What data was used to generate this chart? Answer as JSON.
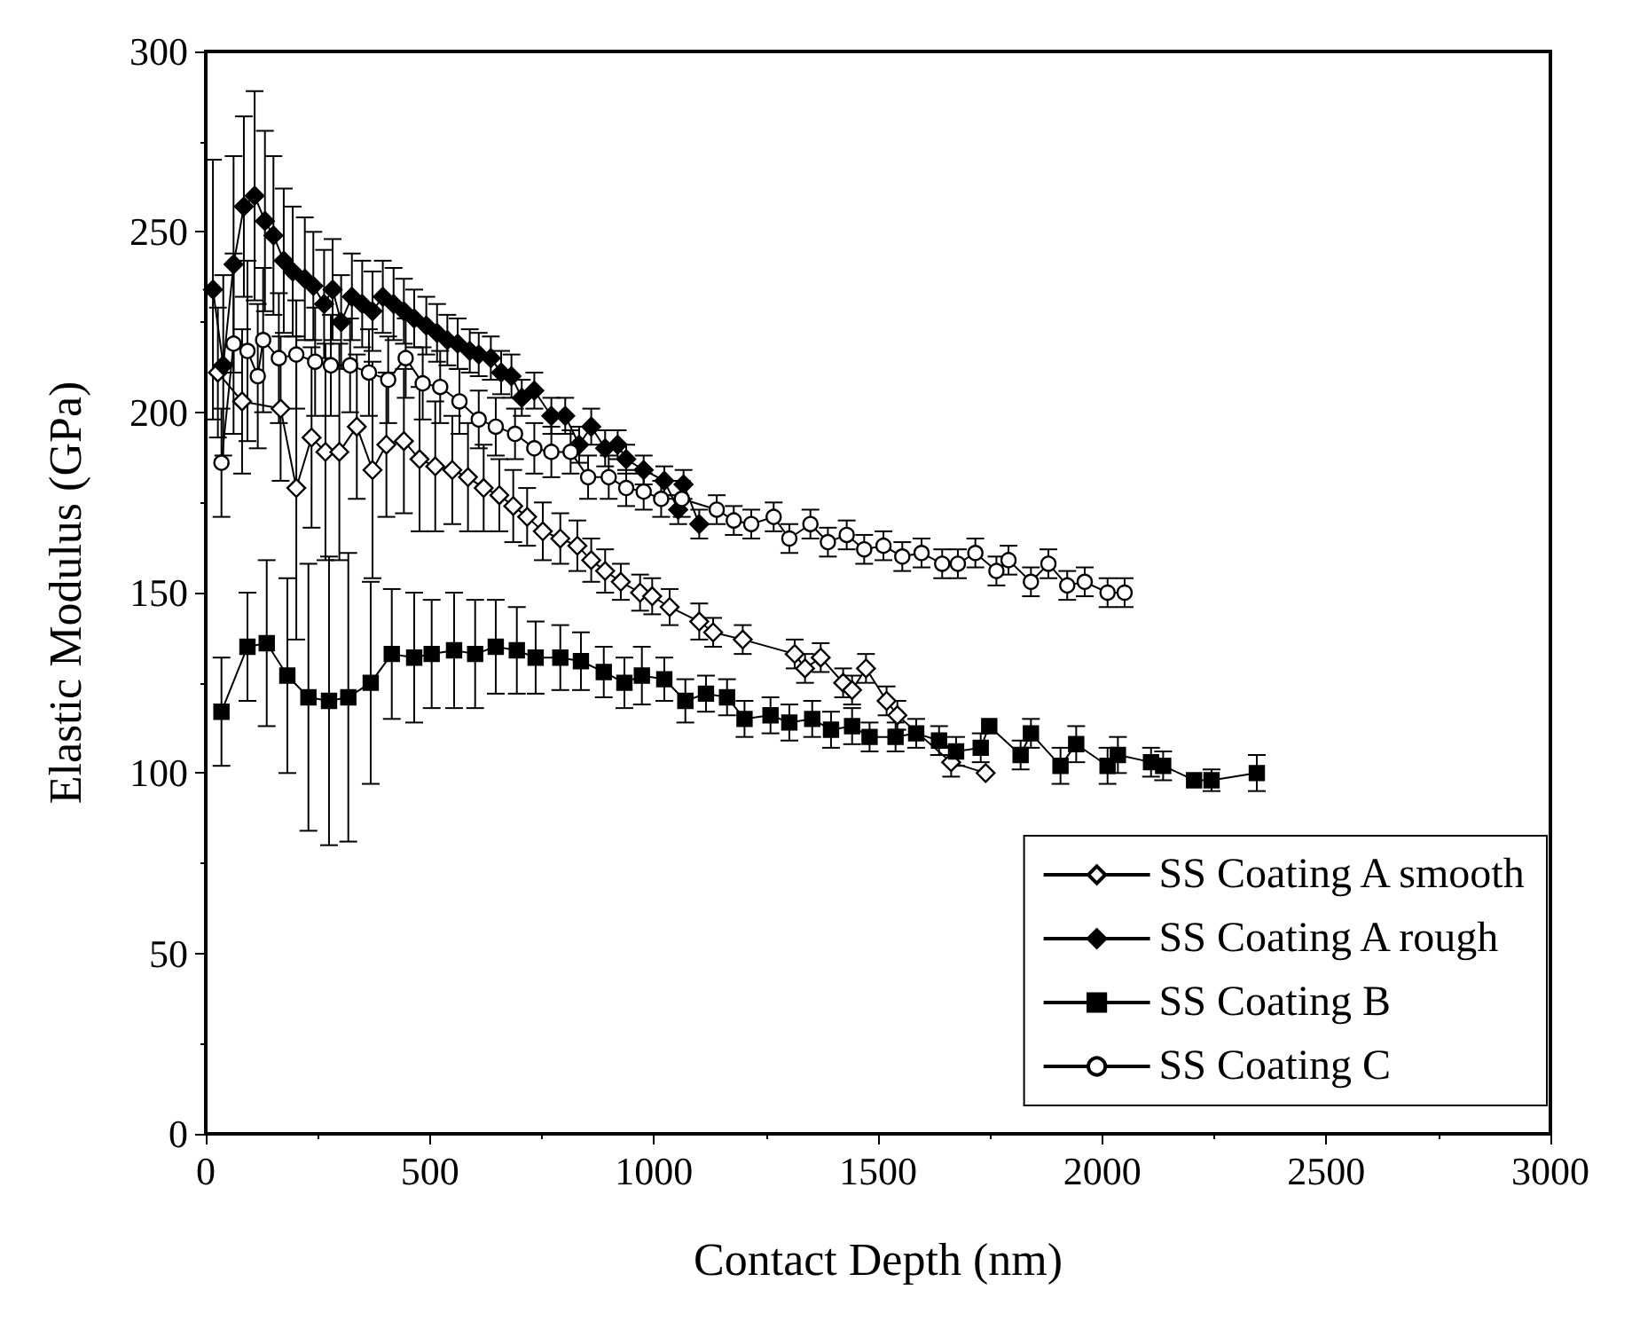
{
  "chart_data": {
    "type": "line",
    "xlabel": "Contact Depth (nm)",
    "ylabel": "Elastic Modulus (GPa)",
    "xlim": [
      0,
      3000
    ],
    "xticks": [
      0,
      500,
      1000,
      1500,
      2000,
      2500,
      3000
    ],
    "ylim": [
      0,
      300
    ],
    "yticks": [
      0,
      50,
      100,
      150,
      200,
      250,
      300
    ],
    "grid": false,
    "legend": "bottom right",
    "line_style": "solid",
    "series": [
      {
        "name": "SS Coating A smooth",
        "color": "#ffffff",
        "marker": "diamond",
        "x": [
          27,
          81,
          167,
          202,
          236,
          267,
          298,
          337,
          372,
          403,
          442,
          477,
          512,
          550,
          585,
          620,
          655,
          686,
          717,
          752,
          791,
          829,
          860,
          891,
          926,
          969,
          996,
          1035,
          1101,
          1132,
          1198,
          1314,
          1337,
          1372,
          1422,
          1442,
          1473,
          1519,
          1543,
          1663,
          1740
        ],
        "values": [
          211,
          203,
          201,
          179,
          193,
          189,
          189,
          196,
          184,
          191,
          192,
          187,
          185,
          184,
          182,
          179,
          177,
          174,
          171,
          167,
          165,
          163,
          159,
          156,
          153,
          150,
          149,
          146,
          142,
          139,
          137,
          133,
          129,
          132,
          125,
          123,
          129,
          120,
          116,
          103,
          100
        ],
        "errors": [
          18,
          20,
          20,
          42,
          25,
          30,
          30,
          20,
          30,
          20,
          20,
          20,
          18,
          15,
          15,
          12,
          10,
          10,
          8,
          8,
          7,
          7,
          6,
          6,
          5,
          5,
          5,
          5,
          5,
          4,
          4,
          4,
          4,
          4,
          4,
          4,
          4,
          4,
          4,
          4,
          null
        ]
      },
      {
        "name": "SS Coating A rough",
        "color": "#000000",
        "marker": "diamond",
        "x": [
          16,
          39,
          62,
          85,
          109,
          132,
          151,
          174,
          194,
          221,
          240,
          264,
          283,
          302,
          326,
          349,
          372,
          395,
          419,
          442,
          465,
          492,
          516,
          539,
          562,
          589,
          609,
          636,
          659,
          682,
          705,
          733,
          771,
          802,
          833,
          860,
          891,
          919,
          938,
          977,
          1023,
          1054,
          1066,
          1101
        ],
        "values": [
          234,
          213,
          241,
          257,
          260,
          253,
          249,
          242,
          239,
          237,
          235,
          230,
          234,
          225,
          232,
          230,
          228,
          232,
          230,
          228,
          226,
          224,
          222,
          220,
          219,
          217,
          216,
          215,
          211,
          210,
          204,
          206,
          199,
          199,
          191,
          196,
          190,
          191,
          187,
          184,
          181,
          173,
          180,
          169
        ],
        "errors": [
          36,
          25,
          30,
          25,
          29,
          25,
          22,
          20,
          18,
          17,
          15,
          15,
          14,
          13,
          12,
          12,
          11,
          10,
          10,
          9,
          8,
          8,
          8,
          7,
          7,
          6,
          6,
          6,
          6,
          6,
          5,
          5,
          5,
          5,
          5,
          5,
          5,
          4,
          4,
          4,
          4,
          4,
          4,
          4
        ]
      },
      {
        "name": "SS Coating B",
        "color": "#000000",
        "marker": "square",
        "x": [
          35,
          93,
          136,
          182,
          229,
          275,
          318,
          368,
          415,
          465,
          504,
          554,
          601,
          647,
          694,
          736,
          791,
          837,
          888,
          934,
          973,
          1023,
          1070,
          1116,
          1163,
          1202,
          1260,
          1302,
          1353,
          1395,
          1442,
          1481,
          1539,
          1585,
          1636,
          1674,
          1729,
          1748,
          1818,
          1841,
          1907,
          1942,
          2012,
          2035,
          2109,
          2136,
          2205,
          2244,
          2345
        ],
        "values": [
          117,
          135,
          136,
          127,
          121,
          120,
          121,
          125,
          133,
          132,
          133,
          134,
          133,
          135,
          134,
          132,
          132,
          131,
          128,
          125,
          127,
          126,
          120,
          122,
          121,
          115,
          116,
          114,
          115,
          112,
          113,
          110,
          110,
          111,
          109,
          106,
          107,
          113,
          105,
          111,
          102,
          108,
          102,
          105,
          103,
          102,
          98,
          98,
          100
        ],
        "errors": [
          15,
          15,
          23,
          27,
          37,
          40,
          40,
          28,
          18,
          18,
          15,
          16,
          15,
          13,
          12,
          10,
          9,
          8,
          7,
          7,
          8,
          6,
          6,
          5,
          5,
          5,
          5,
          5,
          5,
          5,
          5,
          4,
          4,
          4,
          4,
          4,
          4,
          null,
          4,
          4,
          5,
          5,
          5,
          5,
          4,
          4,
          null,
          3,
          5
        ]
      },
      {
        "name": "SS Coating C",
        "color": "#ffffff",
        "marker": "circle",
        "x": [
          35,
          62,
          93,
          116,
          128,
          163,
          202,
          244,
          279,
          322,
          364,
          407,
          446,
          484,
          523,
          566,
          609,
          647,
          690,
          733,
          771,
          814,
          853,
          899,
          938,
          977,
          1016,
          1062,
          1140,
          1178,
          1217,
          1267,
          1302,
          1349,
          1388,
          1430,
          1469,
          1512,
          1554,
          1597,
          1643,
          1678,
          1717,
          1764,
          1791,
          1841,
          1880,
          1922,
          1961,
          2012,
          2050
        ],
        "values": [
          186,
          219,
          217,
          210,
          220,
          215,
          216,
          214,
          213,
          213,
          211,
          209,
          215,
          208,
          207,
          203,
          198,
          196,
          194,
          190,
          189,
          189,
          182,
          182,
          179,
          178,
          176,
          176,
          173,
          170,
          169,
          171,
          165,
          169,
          164,
          166,
          162,
          163,
          160,
          161,
          158,
          158,
          161,
          156,
          159,
          153,
          158,
          152,
          153,
          150,
          150
        ],
        "errors": [
          15,
          25,
          25,
          20,
          20,
          18,
          15,
          15,
          14,
          13,
          12,
          12,
          11,
          10,
          10,
          9,
          8,
          8,
          7,
          7,
          7,
          6,
          6,
          6,
          5,
          5,
          5,
          5,
          4,
          4,
          4,
          4,
          4,
          4,
          4,
          4,
          4,
          4,
          4,
          4,
          4,
          4,
          4,
          4,
          4,
          4,
          4,
          4,
          4,
          4,
          4
        ]
      }
    ]
  }
}
